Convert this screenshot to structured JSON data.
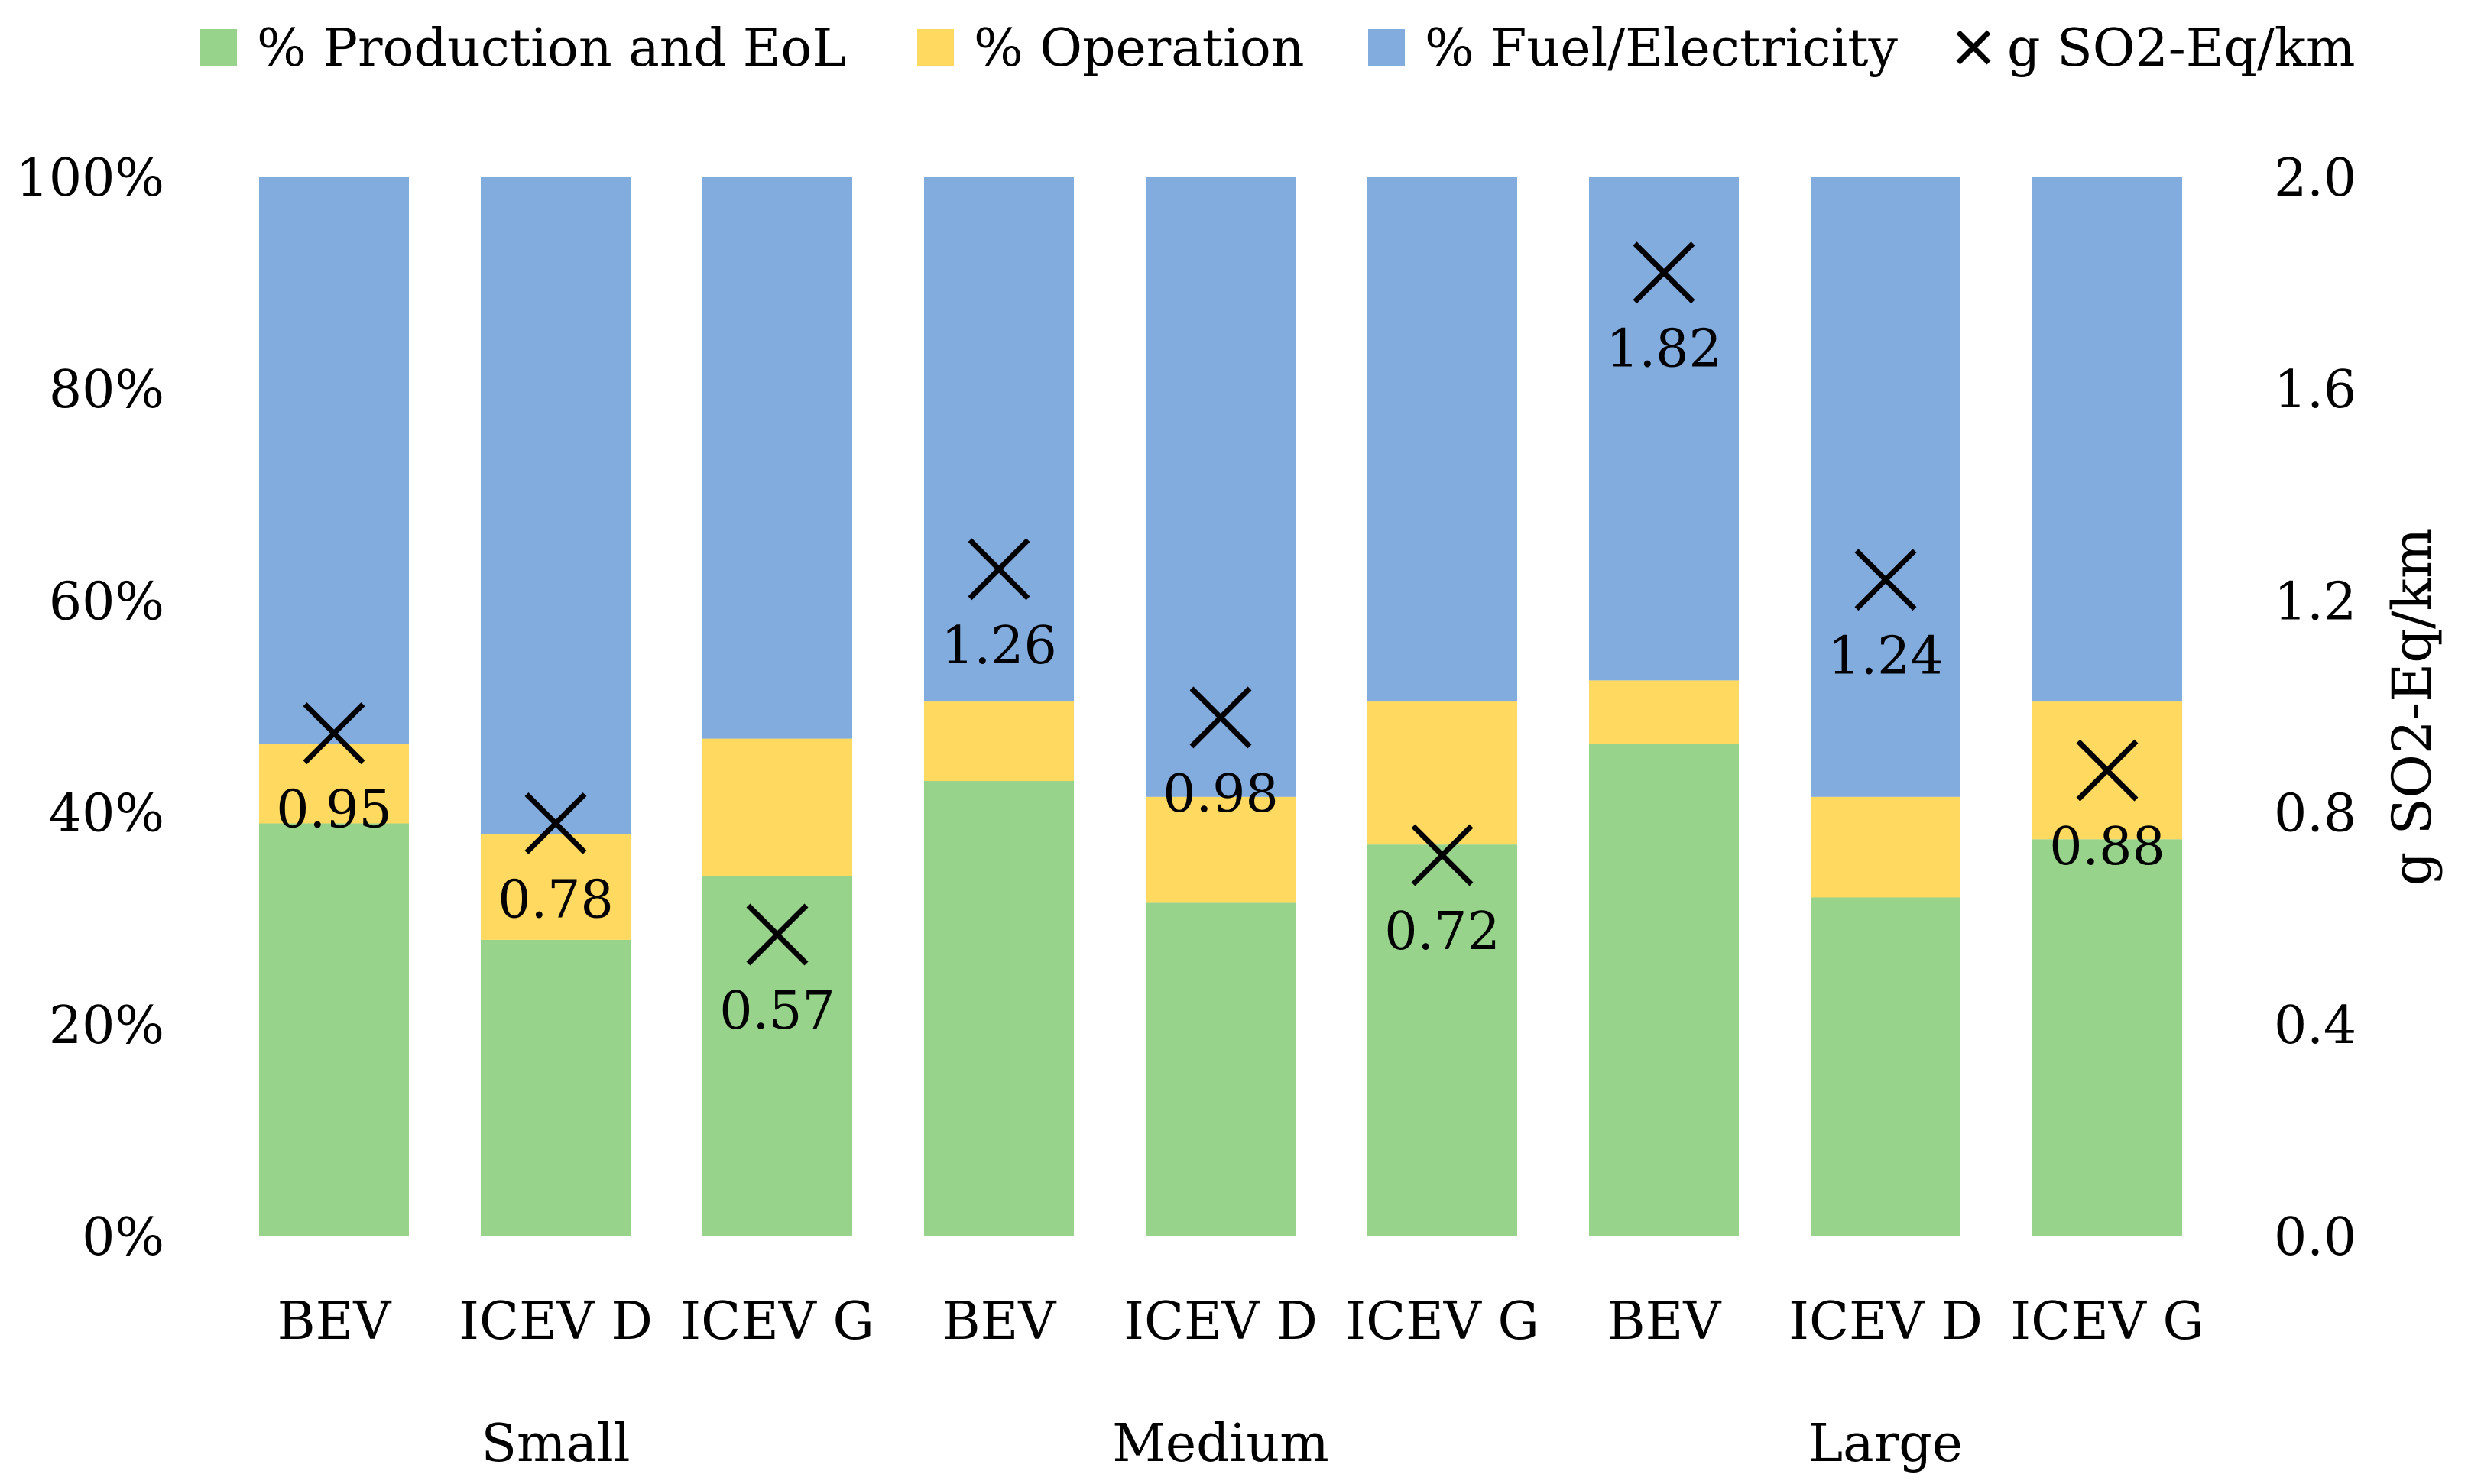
{
  "chart_data": {
    "type": "bar",
    "stacked": true,
    "groups": [
      {
        "label": "Small",
        "categories": [
          "BEV",
          "ICEV D",
          "ICEV G"
        ]
      },
      {
        "label": "Medium",
        "categories": [
          "BEV",
          "ICEV D",
          "ICEV G"
        ]
      },
      {
        "label": "Large",
        "categories": [
          "BEV",
          "ICEV D",
          "ICEV G"
        ]
      }
    ],
    "categories": [
      "BEV",
      "ICEV D",
      "ICEV G",
      "BEV",
      "ICEV D",
      "ICEV G",
      "BEV",
      "ICEV D",
      "ICEV G"
    ],
    "series": [
      {
        "name": "% Production and EoL",
        "color": "#97d38a",
        "values": [
          39,
          28,
          34,
          43,
          31.5,
          37,
          46.5,
          32,
          37.5
        ]
      },
      {
        "name": "% Operation",
        "color": "#ffd960",
        "values": [
          7.5,
          10,
          13,
          7.5,
          10,
          13.5,
          6,
          9.5,
          13
        ]
      },
      {
        "name": "% Fuel/Electricity",
        "color": "#82abde",
        "values": [
          53.5,
          62,
          53,
          49.5,
          58.5,
          49.5,
          47.5,
          58.5,
          49.5
        ]
      }
    ],
    "secondary_series": {
      "name": "g SO2-Eq/km",
      "marker": "x",
      "values": [
        0.95,
        0.78,
        0.57,
        1.26,
        0.98,
        0.72,
        1.82,
        1.24,
        0.88
      ],
      "labels": [
        "0.95",
        "0.78",
        "0.57",
        "1.26",
        "0.98",
        "0.72",
        "1.82",
        "1.24",
        "0.88"
      ],
      "label_position": [
        "below",
        "below",
        "below",
        "below",
        "below",
        "below",
        "below",
        "below",
        "below"
      ]
    },
    "y_left": {
      "min": 0,
      "max": 100,
      "ticks": [
        "0%",
        "20%",
        "40%",
        "60%",
        "80%",
        "100%"
      ]
    },
    "y_right": {
      "min": 0,
      "max": 2,
      "ticks": [
        "0.0",
        "0.4",
        "0.8",
        "1.2",
        "1.6",
        "2.0"
      ],
      "label": "g SO2-Eq/km"
    },
    "legend": {
      "position": "top",
      "items": [
        "% Production and EoL",
        "% Operation",
        "% Fuel/Electricity",
        "g SO2-Eq/km"
      ]
    },
    "grid": false,
    "title": ""
  }
}
